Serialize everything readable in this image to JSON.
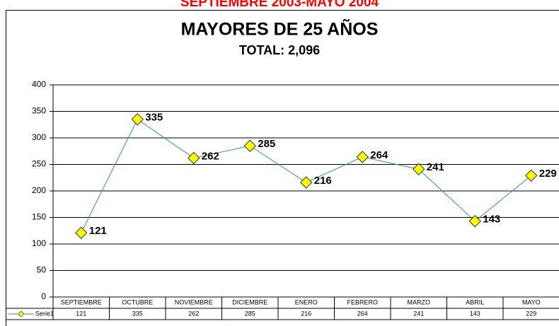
{
  "chart_data": {
    "type": "line",
    "header": "SEPTIEMBRE 2003-MAYO 2004",
    "title": "MAYORES DE 25 AÑOS",
    "subtitle": "TOTAL: 2,096",
    "categories": [
      "SEPTIEMBRE",
      "OCTUBRE",
      "NOVIEMBRE",
      "DICIEMBRE",
      "ENERO",
      "FEBRERO",
      "MARZO",
      "ABRIL",
      "MAYO"
    ],
    "series": [
      {
        "name": "Serie1",
        "color": "#339966",
        "marker_color": "#ffff00",
        "values": [
          121,
          335,
          262,
          285,
          216,
          264,
          241,
          143,
          229
        ]
      }
    ],
    "ylim": [
      0,
      400
    ],
    "yticks": [
      0,
      50,
      100,
      150,
      200,
      250,
      300,
      350,
      400
    ],
    "grid": true
  }
}
